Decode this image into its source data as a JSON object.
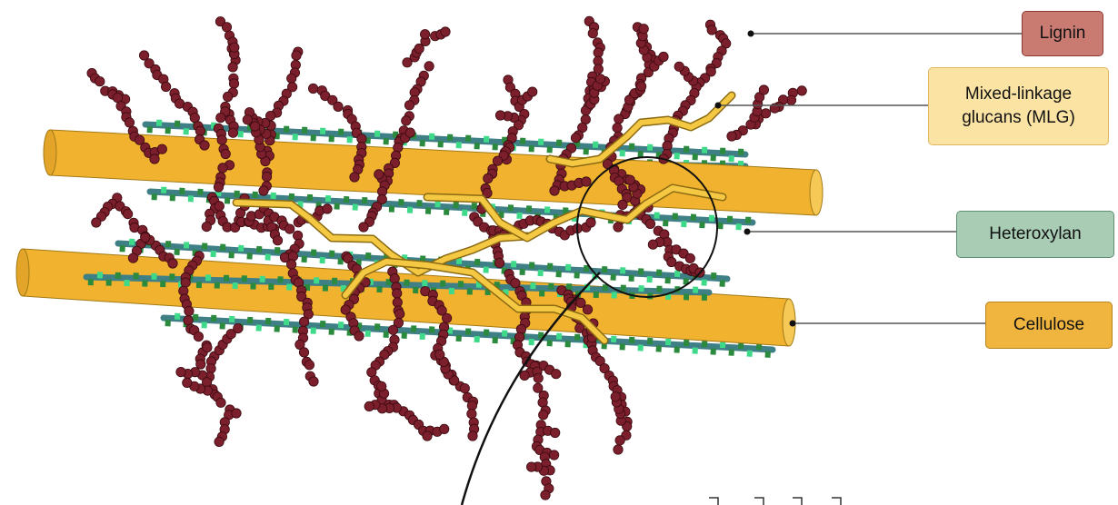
{
  "labels": {
    "lignin": "Lignin",
    "mlg_line1": "Mixed-linkage",
    "mlg_line2": "glucans (MLG)",
    "heteroxylan": "Heteroxylan",
    "cellulose": "Cellulose"
  },
  "icons": [
    "lignin-polymer-icon",
    "mlg-chain-icon",
    "heteroxylan-chain-icon",
    "cellulose-microfibril-icon",
    "magnifier-circle-icon"
  ],
  "colors": {
    "lignin_fill": "#7a1f2b",
    "lignin_stroke": "#3b0a10",
    "lignin_box": "#c97b72",
    "lignin_box_border": "#8c3a33",
    "mlg_box": "#fbe3a4",
    "mlg_box_border": "#e0b660",
    "mlg_chain": "#f4c842",
    "heteroxylan_box": "#a8cdb4",
    "heteroxylan_box_border": "#5e8f70",
    "heteroxylan_backbone": "#3f7f86",
    "heteroxylan_green_dark": "#2b8a3e",
    "heteroxylan_green_light": "#3fd98a",
    "cellulose_box": "#f0b53e",
    "cellulose_box_border": "#b7831c",
    "cellulose": "#f0b22f",
    "leader_line": "#555555"
  }
}
